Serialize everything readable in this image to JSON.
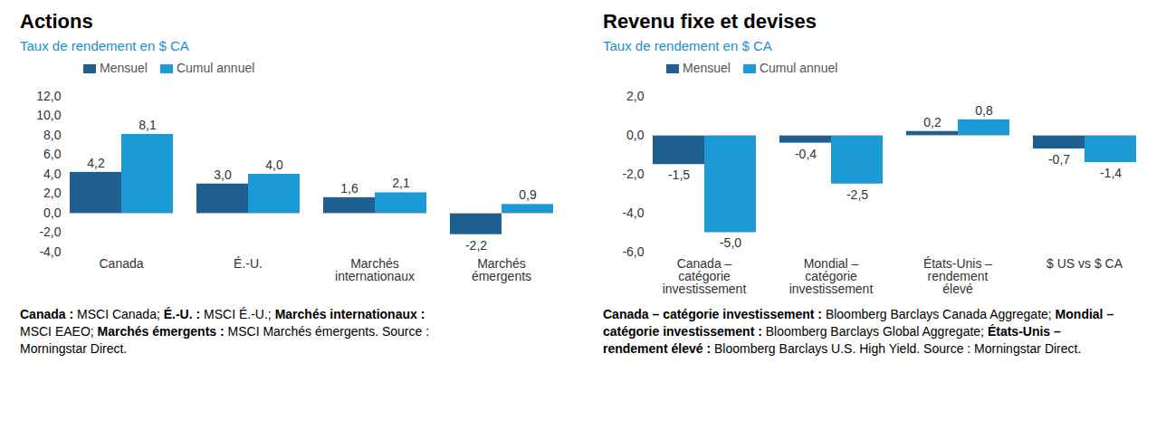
{
  "chart_data": [
    {
      "type": "bar",
      "title": "Actions",
      "subtitle": "Taux de rendement en $ CA",
      "categories": [
        "Canada",
        "É.-U.",
        "Marchés internationaux",
        "Marchés émergents"
      ],
      "series": [
        {
          "name": "Mensuel",
          "color": "#1f5f8f",
          "values": [
            4.2,
            3.0,
            1.6,
            -2.2
          ],
          "value_labels": [
            "4,2",
            "3,0",
            "1,6",
            "-2,2"
          ]
        },
        {
          "name": "Cumul annuel",
          "color": "#1b9ad6",
          "values": [
            8.1,
            4.0,
            2.1,
            0.9
          ],
          "value_labels": [
            "8,1",
            "4,0",
            "2,1",
            "0,9"
          ]
        }
      ],
      "ylim": [
        -4,
        12
      ],
      "yticks": [
        {
          "value": -4,
          "label": "-4,0"
        },
        {
          "value": -2,
          "label": "-2,0"
        },
        {
          "value": 0,
          "label": "0,0"
        },
        {
          "value": 2,
          "label": "2,0"
        },
        {
          "value": 4,
          "label": "4,0"
        },
        {
          "value": 6,
          "label": "6,0"
        },
        {
          "value": 8,
          "label": "8,0"
        },
        {
          "value": 10,
          "label": "10,0"
        },
        {
          "value": 12,
          "label": "12,0"
        }
      ],
      "grid": false,
      "legend": "top",
      "data_labels": true,
      "notes": [
        [
          "Canada :",
          "MSCI Canada;"
        ],
        [
          "É.-U. :",
          "MSCI É.-U.;"
        ],
        [
          "Marchés internationaux :",
          "MSCI EAEO;"
        ],
        [
          "Marchés émergents :",
          "MSCI Marchés émergents. Source : Morningstar Direct."
        ]
      ]
    },
    {
      "type": "bar",
      "title": "Revenu fixe et devises",
      "subtitle": "Taux de rendement en $ CA",
      "categories": [
        "Canada – catégorie investissement",
        "Mondial – catégorie investissement",
        "États-Unis – rendement élevé",
        "$ US vs $ CA"
      ],
      "series": [
        {
          "name": "Mensuel",
          "color": "#1f5f8f",
          "values": [
            -1.5,
            -0.4,
            0.2,
            -0.7
          ],
          "value_labels": [
            "-1,5",
            "-0,4",
            "0,2",
            "-0,7"
          ]
        },
        {
          "name": "Cumul annuel",
          "color": "#1b9ad6",
          "values": [
            -5.0,
            -2.5,
            0.8,
            -1.4
          ],
          "value_labels": [
            "-5,0",
            "-2,5",
            "0,8",
            "-1,4"
          ]
        }
      ],
      "ylim": [
        -6,
        2
      ],
      "yticks": [
        {
          "value": -6,
          "label": "-6,0"
        },
        {
          "value": -4,
          "label": "-4,0"
        },
        {
          "value": -2,
          "label": "-2,0"
        },
        {
          "value": 0,
          "label": "0,0"
        },
        {
          "value": 2,
          "label": "2,0"
        }
      ],
      "grid": false,
      "legend": "top",
      "data_labels": true,
      "notes": [
        [
          "Canada – catégorie investissement :",
          "Bloomberg Barclays Canada Aggregate;"
        ],
        [
          "Mondial – catégorie investissement :",
          "Bloomberg Barclays Global Aggregate;"
        ],
        [
          "États-Unis – rendement élevé :",
          "Bloomberg Barclays U.S. High Yield. Source : Morningstar Direct."
        ]
      ]
    }
  ]
}
